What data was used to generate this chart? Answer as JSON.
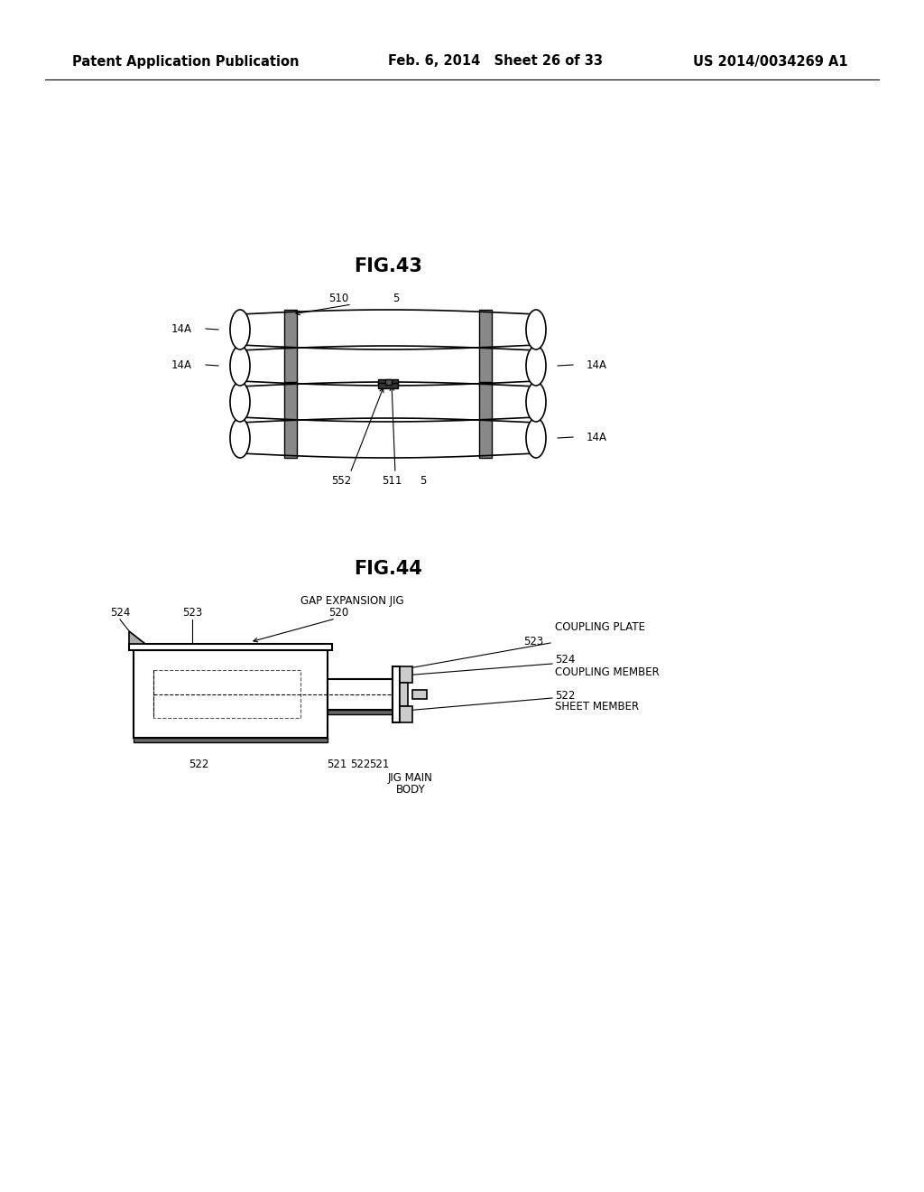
{
  "background_color": "#ffffff",
  "header_left": "Patent Application Publication",
  "header_middle": "Feb. 6, 2014   Sheet 26 of 33",
  "header_right": "US 2014/0034269 A1",
  "fig43_title": "FIG.43",
  "fig44_title": "FIG.44",
  "line_color": "#000000",
  "font_size_header": 10.5,
  "font_size_fig": 15,
  "font_size_label": 8.5
}
